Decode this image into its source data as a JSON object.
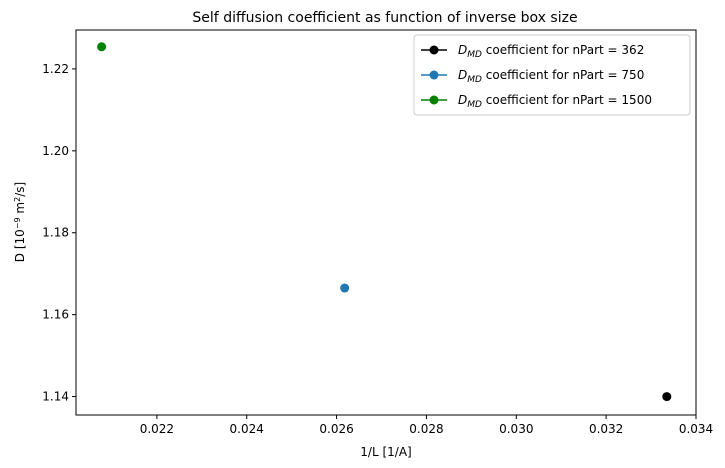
{
  "chart_data": {
    "type": "scatter",
    "title": "Self diffusion coefficient as function of inverse box size",
    "xlabel": "1/L  [1/A]",
    "ylabel": {
      "prefix": "D  [10",
      "exp1": "−9",
      "mid": " m",
      "exp2": "2",
      "suffix": "/s]"
    },
    "xlim": [
      0.0202,
      0.034
    ],
    "ylim": [
      1.1355,
      1.2295
    ],
    "xticks": [
      0.022,
      0.024,
      0.026,
      0.028,
      0.03,
      0.032,
      0.034
    ],
    "xtick_labels": [
      "0.022",
      "0.024",
      "0.026",
      "0.028",
      "0.030",
      "0.032",
      "0.034"
    ],
    "yticks": [
      1.14,
      1.16,
      1.18,
      1.2,
      1.22
    ],
    "ytick_labels": [
      "1.14",
      "1.16",
      "1.18",
      "1.20",
      "1.22"
    ],
    "grid": false,
    "legend_position": "top-right",
    "series": [
      {
        "name_italic": "D",
        "name_sub": "MD",
        "name_rest": " coefficient for nPart = 362",
        "color": "#000000",
        "x": [
          0.03335
        ],
        "y": [
          1.14
        ]
      },
      {
        "name_italic": "D",
        "name_sub": "MD",
        "name_rest": " coefficient for nPart = 750",
        "color": "#1f77b4",
        "x": [
          0.02618
        ],
        "y": [
          1.1665
        ]
      },
      {
        "name_italic": "D",
        "name_sub": "MD",
        "name_rest": " coefficient for nPart = 1500",
        "color": "#008000",
        "x": [
          0.02077
        ],
        "y": [
          1.2254
        ]
      }
    ]
  }
}
